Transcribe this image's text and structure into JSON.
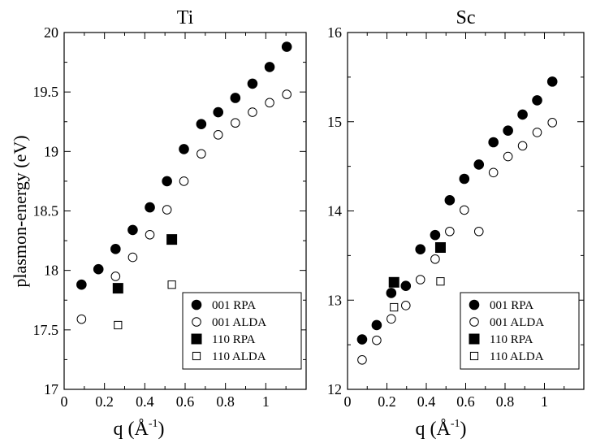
{
  "figure": {
    "ylabel": "plasmon-energy (eV)",
    "xlabel_main": "q (Å",
    "xlabel_sup": "-1",
    "xlabel_close": ")"
  },
  "colors": {
    "marker": "#000000",
    "background": "#ffffff"
  },
  "chart_data": [
    {
      "type": "scatter",
      "title": "Ti",
      "xlabel": "q (Å-1)",
      "ylabel": "plasmon-energy (eV)",
      "xlim": [
        0,
        1.2
      ],
      "ylim": [
        17,
        20
      ],
      "xticks": [
        0,
        0.2,
        0.4,
        0.6,
        0.8,
        1
      ],
      "xtick_labels": [
        "0",
        "0.2",
        "0.4",
        "0.6",
        "0.8",
        "1"
      ],
      "yticks": [
        17,
        17.5,
        18,
        18.5,
        19,
        19.5,
        20
      ],
      "ytick_labels": [
        "17",
        "17.5",
        "18",
        "18.5",
        "19",
        "19.5",
        "20"
      ],
      "legend_position": "bottom-right",
      "series": [
        {
          "name": "001 RPA",
          "marker": "circle",
          "filled": true,
          "x": [
            0.086,
            0.17,
            0.255,
            0.34,
            0.425,
            0.51,
            0.594,
            0.68,
            0.764,
            0.849,
            0.934,
            1.019,
            1.104
          ],
          "y": [
            17.88,
            18.01,
            18.18,
            18.34,
            18.53,
            18.75,
            19.02,
            19.23,
            19.33,
            19.45,
            19.57,
            19.71,
            19.88
          ]
        },
        {
          "name": "001 ALDA",
          "marker": "circle",
          "filled": false,
          "x": [
            0.086,
            0.255,
            0.34,
            0.425,
            0.51,
            0.594,
            0.68,
            0.764,
            0.849,
            0.934,
            1.019,
            1.104
          ],
          "y": [
            17.59,
            17.95,
            18.11,
            18.3,
            18.51,
            18.75,
            18.98,
            19.14,
            19.24,
            19.33,
            19.41,
            19.48
          ]
        },
        {
          "name": "110 RPA",
          "marker": "square",
          "filled": true,
          "x": [
            0.267,
            0.534
          ],
          "y": [
            17.85,
            18.26
          ]
        },
        {
          "name": "110 ALDA",
          "marker": "square",
          "filled": false,
          "x": [
            0.267,
            0.534
          ],
          "y": [
            17.54,
            17.88
          ]
        }
      ]
    },
    {
      "type": "scatter",
      "title": "Sc",
      "xlabel": "q (Å-1)",
      "ylabel": "",
      "xlim": [
        0,
        1.2
      ],
      "ylim": [
        12,
        16
      ],
      "xticks": [
        0,
        0.2,
        0.4,
        0.6,
        0.8,
        1
      ],
      "xtick_labels": [
        "0",
        "0.2",
        "0.4",
        "0.6",
        "0.8",
        "1"
      ],
      "yticks": [
        12,
        13,
        14,
        15,
        16
      ],
      "ytick_labels": [
        "12",
        "13",
        "14",
        "15",
        "16"
      ],
      "legend_position": "bottom-right",
      "series": [
        {
          "name": "001 RPA",
          "marker": "circle",
          "filled": true,
          "x": [
            0.074,
            0.148,
            0.222,
            0.296,
            0.37,
            0.445,
            0.519,
            0.593,
            0.667,
            0.741,
            0.815,
            0.889,
            0.963,
            1.04
          ],
          "y": [
            12.56,
            12.72,
            13.08,
            13.16,
            13.57,
            13.73,
            14.12,
            14.36,
            14.52,
            14.77,
            14.9,
            15.08,
            15.24,
            15.45
          ]
        },
        {
          "name": "001 ALDA",
          "marker": "circle",
          "filled": false,
          "x": [
            0.074,
            0.148,
            0.222,
            0.296,
            0.37,
            0.445,
            0.519,
            0.593,
            0.667,
            0.741,
            0.815,
            0.889,
            0.963,
            1.04
          ],
          "y": [
            12.33,
            12.55,
            12.79,
            12.94,
            13.23,
            13.46,
            13.77,
            14.01,
            13.77,
            14.43,
            14.61,
            14.73,
            14.88,
            14.99
          ]
        },
        {
          "name": "110 RPA",
          "marker": "square",
          "filled": true,
          "x": [
            0.236,
            0.472
          ],
          "y": [
            13.2,
            13.59
          ]
        },
        {
          "name": "110 ALDA",
          "marker": "square",
          "filled": false,
          "x": [
            0.236,
            0.472
          ],
          "y": [
            12.92,
            13.21
          ]
        }
      ]
    }
  ]
}
